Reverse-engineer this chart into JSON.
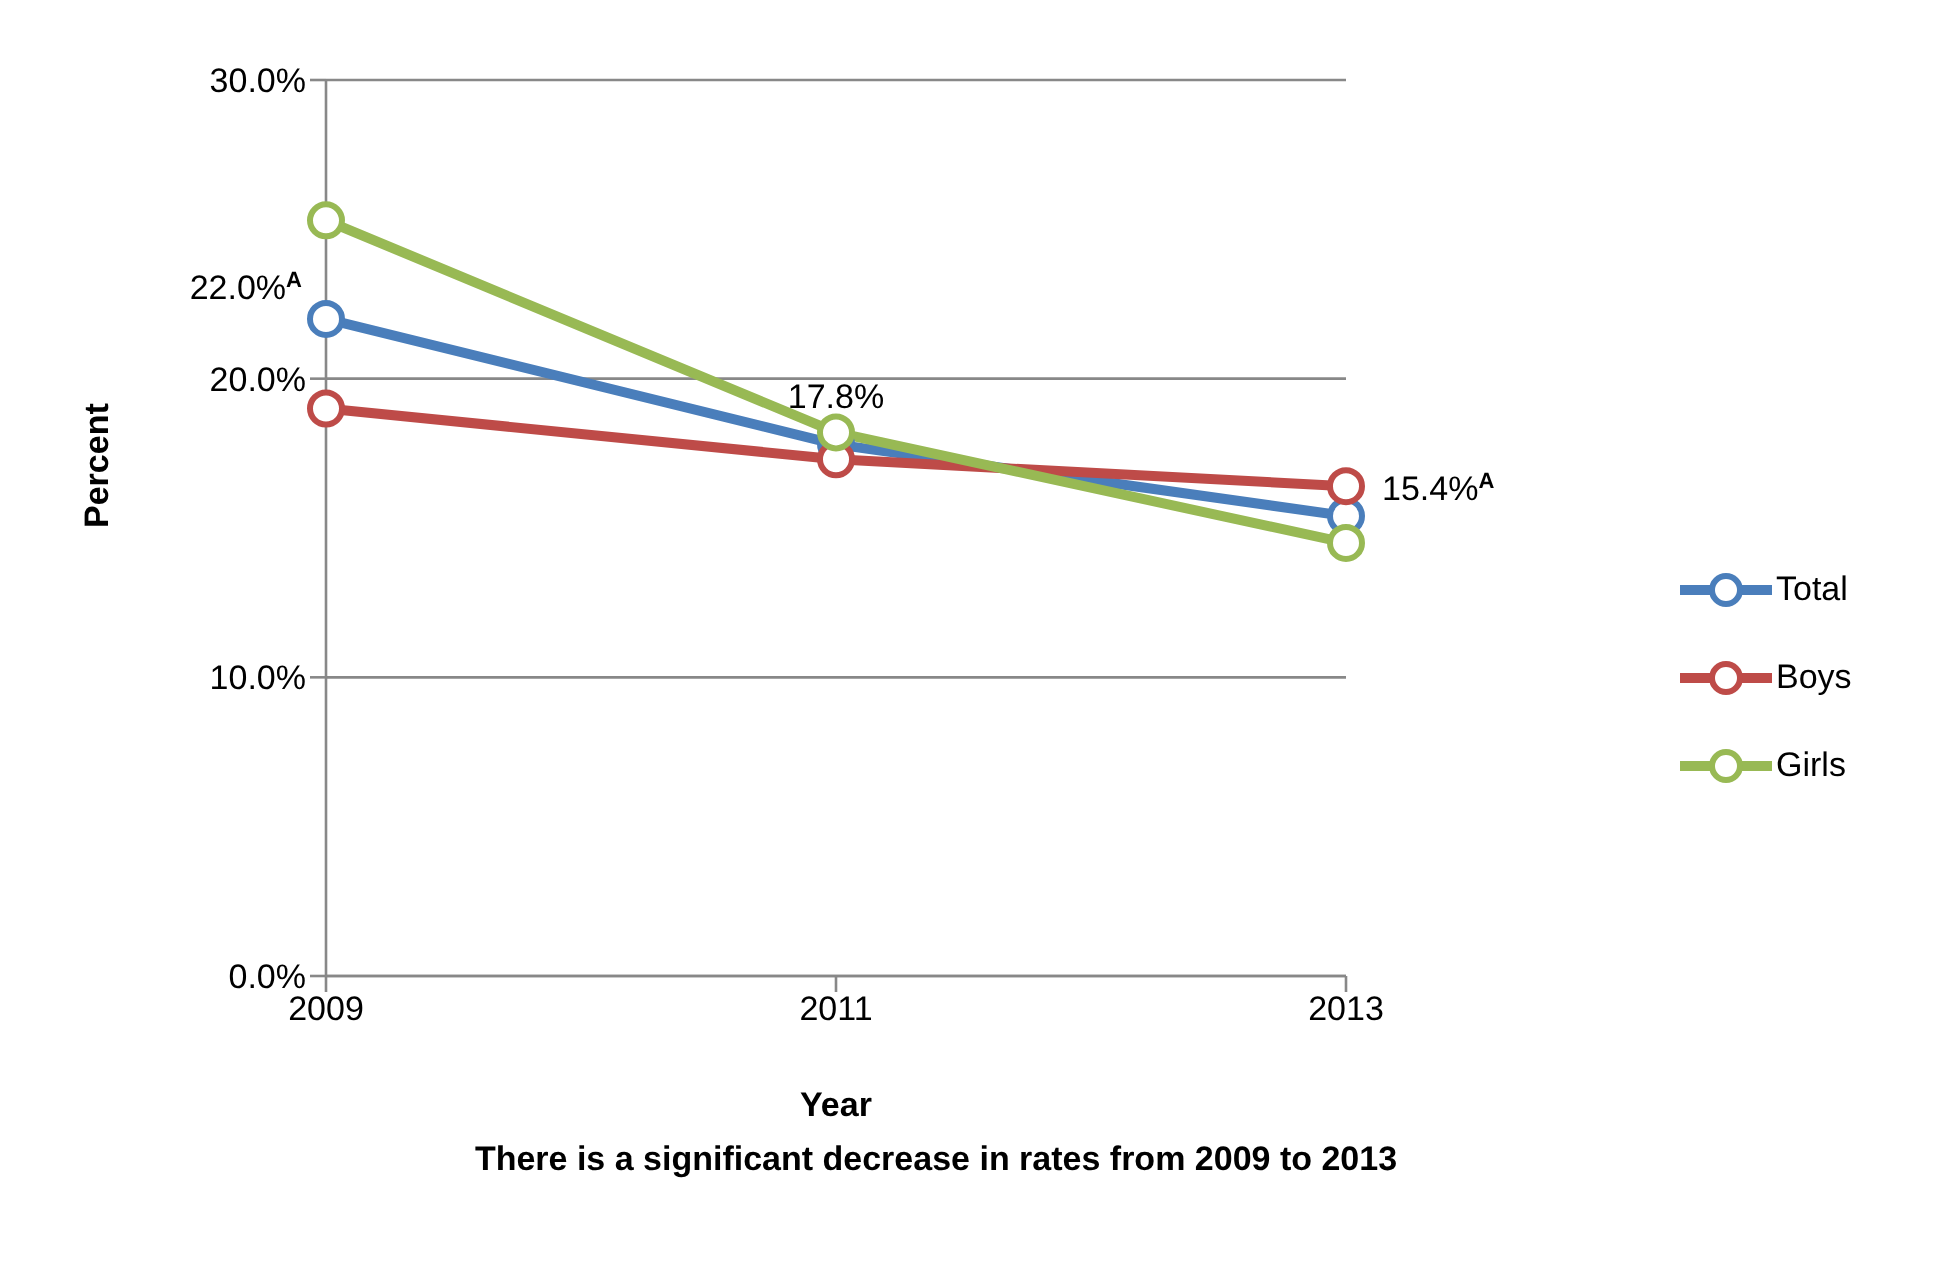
{
  "chart_data": {
    "type": "line",
    "xlabel": "Year",
    "ylabel": "Percent",
    "annotations": [
      "There is a significant decrease in rates from 2009 to 2013"
    ],
    "categories": [
      "2009",
      "2011",
      "2013"
    ],
    "series": [
      {
        "name": "Total",
        "color": "#4a7ebb",
        "values": [
          22.0,
          17.8,
          15.4
        ],
        "value_labels": [
          "22.0%$^{A}$",
          "17.8%",
          "15.4%$^{A}$"
        ]
      },
      {
        "name": "Boys",
        "color": "#be4b48",
        "values": [
          19.0,
          17.3,
          16.4
        ]
      },
      {
        "name": "Girls",
        "color": "#98b954",
        "values": [
          25.3,
          18.2,
          14.5
        ]
      }
    ],
    "ylim": [
      0,
      30
    ],
    "yticks": [
      {
        "value": 0,
        "label": "0.0%"
      },
      {
        "value": 10,
        "label": "10.0%"
      },
      {
        "value": 20,
        "label": "20.0%"
      },
      {
        "value": 30,
        "label": "30.0%"
      }
    ],
    "grid": "y",
    "legend": "right",
    "marker": "circle",
    "line_style": "solid"
  }
}
